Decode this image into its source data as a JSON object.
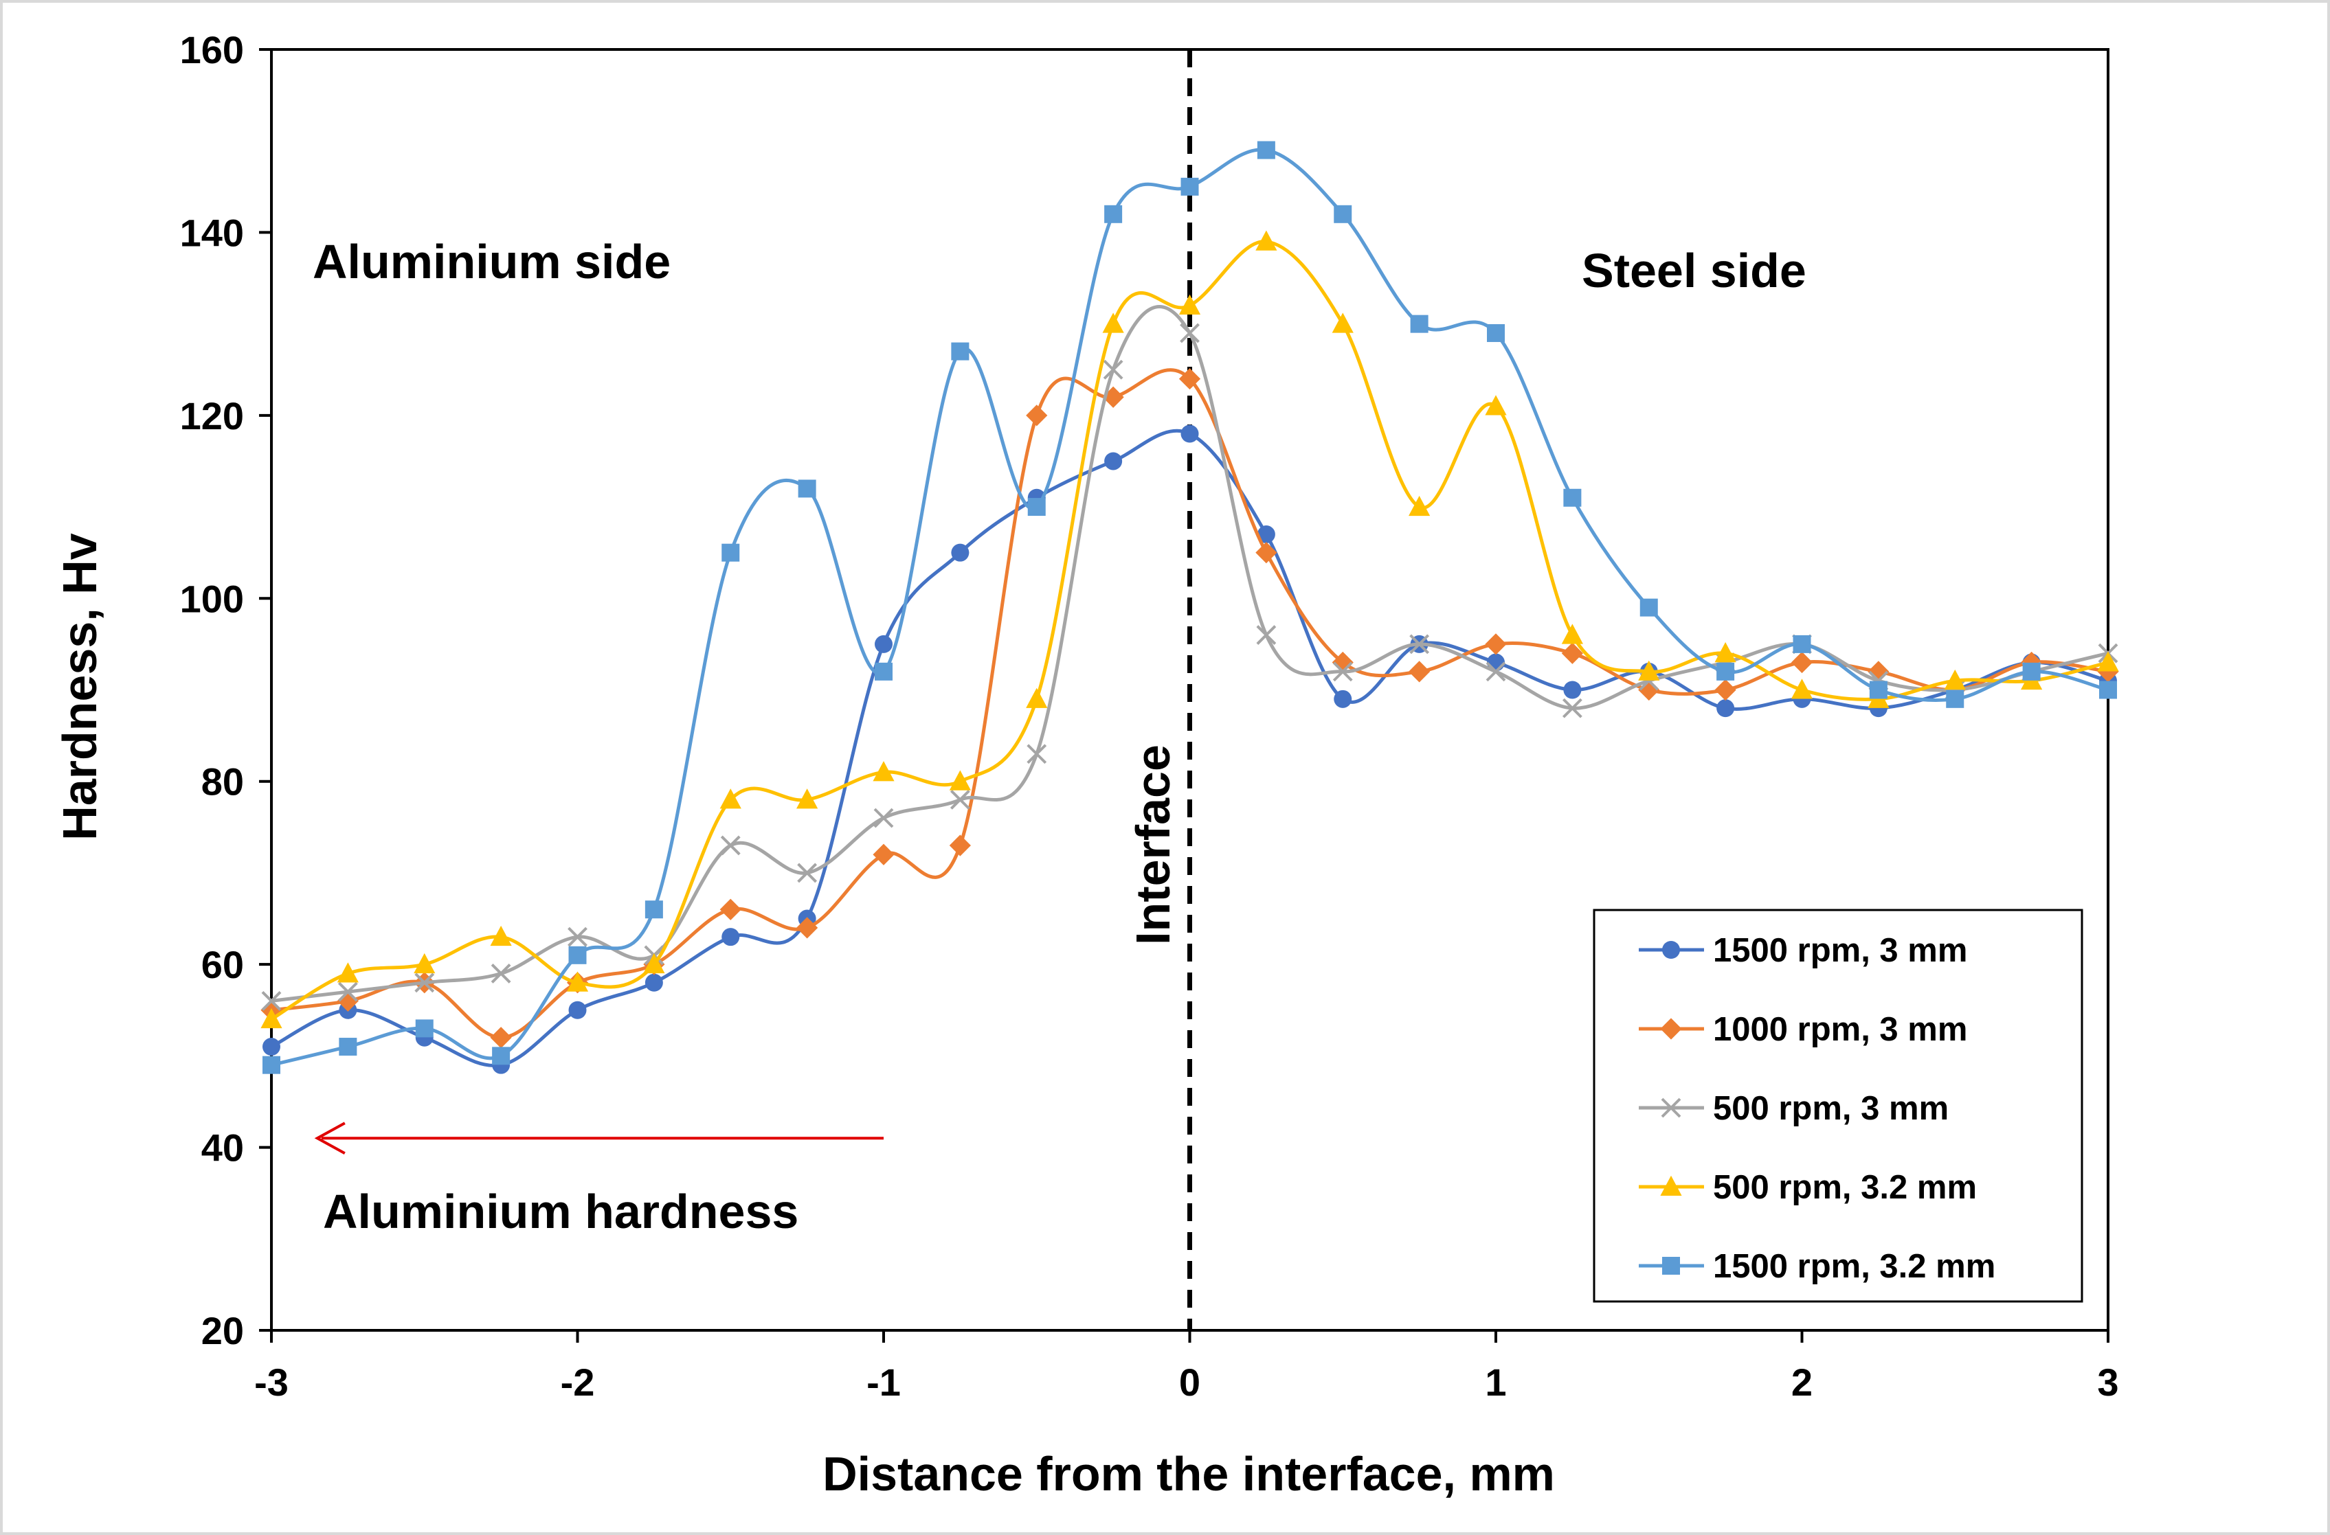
{
  "chart_data": {
    "type": "line",
    "title": "",
    "xlabel": "Distance from the interface, mm",
    "ylabel": "Hardness, Hv",
    "xlim": [
      -3,
      3
    ],
    "ylim": [
      20,
      160
    ],
    "xticks": [
      -3,
      -2,
      -1,
      0,
      1,
      2,
      3
    ],
    "yticks": [
      20,
      40,
      60,
      80,
      100,
      120,
      140,
      160
    ],
    "grid": false,
    "legend_position": "bottom-right",
    "annotations": {
      "aluminium_side": "Aluminium side",
      "steel_side": "Steel side",
      "aluminium_hardness": "Aluminium hardness",
      "interface": "Interface"
    },
    "interface_line_x": 0,
    "arrow": {
      "from": [
        -1,
        41
      ],
      "to": [
        -2.85,
        41
      ]
    },
    "x": [
      -3,
      -2.75,
      -2.5,
      -2.25,
      -2,
      -1.75,
      -1.5,
      -1.25,
      -1,
      -0.75,
      -0.5,
      -0.25,
      0,
      0.25,
      0.5,
      0.75,
      1,
      1.25,
      1.5,
      1.75,
      2,
      2.25,
      2.5,
      2.75,
      3
    ],
    "series": [
      {
        "name": "1500 rpm, 3 mm",
        "color": "#4472C4",
        "marker": "circle",
        "values": [
          51,
          55,
          52,
          49,
          55,
          58,
          63,
          65,
          95,
          105,
          111,
          115,
          118,
          107,
          89,
          95,
          93,
          90,
          92,
          88,
          89,
          88,
          90,
          93,
          91
        ]
      },
      {
        "name": "1000 rpm, 3 mm",
        "color": "#ED7D31",
        "marker": "diamond",
        "values": [
          55,
          56,
          58,
          52,
          58,
          60,
          66,
          64,
          72,
          73,
          120,
          122,
          124,
          105,
          93,
          92,
          95,
          94,
          90,
          90,
          93,
          92,
          90,
          93,
          92
        ]
      },
      {
        "name": "500 rpm, 3 mm",
        "color": "#A5A5A5",
        "marker": "x",
        "values": [
          56,
          57,
          58,
          59,
          63,
          61,
          73,
          70,
          76,
          78,
          83,
          125,
          129,
          96,
          92,
          95,
          92,
          88,
          91,
          93,
          95,
          91,
          90,
          92,
          94
        ]
      },
      {
        "name": "500 rpm, 3.2 mm",
        "color": "#FFC000",
        "marker": "triangle",
        "values": [
          54,
          59,
          60,
          63,
          58,
          60,
          78,
          78,
          81,
          80,
          89,
          130,
          132,
          139,
          130,
          110,
          121,
          96,
          92,
          94,
          90,
          89,
          91,
          91,
          93
        ]
      },
      {
        "name": "1500 rpm, 3.2 mm",
        "color": "#5B9BD5",
        "marker": "square",
        "values": [
          49,
          51,
          53,
          50,
          61,
          66,
          105,
          112,
          92,
          127,
          110,
          142,
          145,
          149,
          142,
          130,
          129,
          111,
          99,
          92,
          95,
          90,
          89,
          92,
          90
        ]
      }
    ]
  }
}
